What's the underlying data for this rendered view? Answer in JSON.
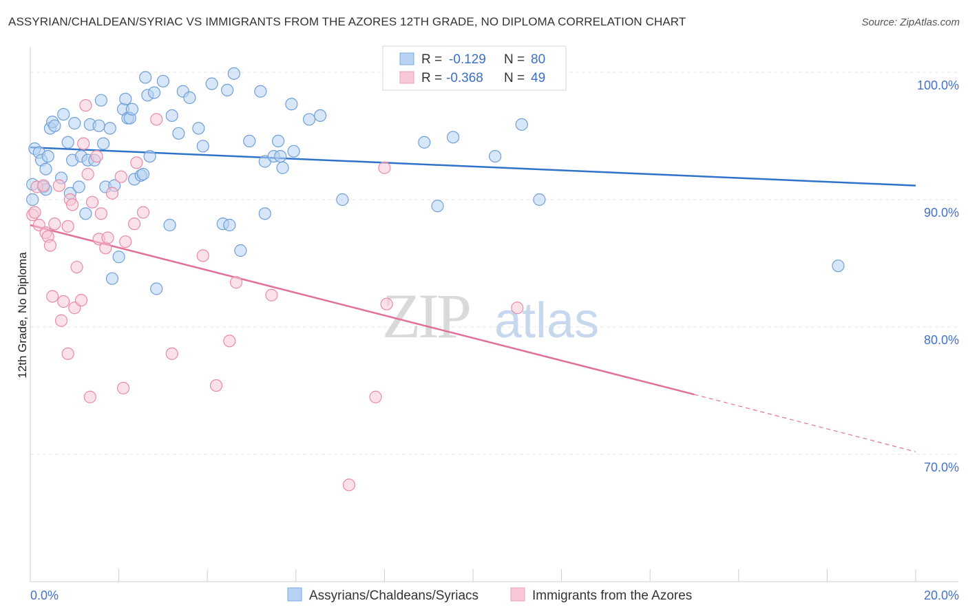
{
  "title": "ASSYRIAN/CHALDEAN/SYRIAC VS IMMIGRANTS FROM THE AZORES 12TH GRADE, NO DIPLOMA CORRELATION CHART",
  "source": "Source: ZipAtlas.com",
  "watermark": {
    "zip": "ZIP",
    "atlas": "atlas"
  },
  "stats_legend": [
    {
      "r_label": "R =",
      "r_value": "-0.129",
      "n_label": "N =",
      "n_value": "80",
      "color": "#a8c8f0"
    },
    {
      "r_label": "R =",
      "r_value": "-0.368",
      "n_label": "N =",
      "n_value": "49",
      "color": "#f5b8cb"
    }
  ],
  "chart_data": {
    "type": "scatter",
    "title": "ASSYRIAN/CHALDEAN/SYRIAC VS IMMIGRANTS FROM THE AZORES 12TH GRADE, NO DIPLOMA CORRELATION CHART",
    "xlabel": "",
    "ylabel": "12th Grade, No Diploma",
    "xlim": [
      0,
      20
    ],
    "ylim": [
      60,
      102
    ],
    "x_tick_labels": [
      "0.0%",
      "20.0%"
    ],
    "y_ticks": [
      70,
      80,
      90,
      100
    ],
    "y_tick_labels": [
      "70.0%",
      "80.0%",
      "90.0%",
      "100.0%"
    ],
    "grid": true,
    "legend_position": "bottom",
    "series": [
      {
        "name": "Assyrians/Chaldeans/Syriacs",
        "color": "#6f9fd8",
        "fill": "#b7d2f2",
        "line_color": "#2e72c9",
        "trend": {
          "x0": 0,
          "y0": 94.1,
          "x1": 20,
          "y1": 91.1
        },
        "points": [
          [
            0.1,
            94.0
          ],
          [
            0.2,
            93.7
          ],
          [
            0.25,
            93.1
          ],
          [
            0.3,
            91.0
          ],
          [
            0.35,
            92.4
          ],
          [
            0.35,
            90.8
          ],
          [
            0.4,
            93.4
          ],
          [
            0.45,
            95.6
          ],
          [
            0.5,
            96.1
          ],
          [
            0.55,
            95.8
          ],
          [
            0.7,
            91.7
          ],
          [
            0.75,
            96.7
          ],
          [
            0.85,
            94.5
          ],
          [
            0.9,
            90.5
          ],
          [
            0.95,
            93.1
          ],
          [
            1.0,
            96.0
          ],
          [
            1.1,
            91.0
          ],
          [
            1.15,
            93.4
          ],
          [
            1.25,
            88.9
          ],
          [
            1.3,
            93.1
          ],
          [
            1.35,
            95.9
          ],
          [
            1.45,
            93.1
          ],
          [
            1.55,
            95.8
          ],
          [
            1.6,
            97.8
          ],
          [
            1.65,
            94.4
          ],
          [
            1.7,
            91.0
          ],
          [
            1.8,
            95.6
          ],
          [
            1.85,
            83.8
          ],
          [
            1.9,
            91.1
          ],
          [
            2.0,
            85.5
          ],
          [
            2.1,
            97.1
          ],
          [
            2.15,
            97.9
          ],
          [
            2.2,
            96.4
          ],
          [
            2.25,
            96.4
          ],
          [
            2.3,
            97.1
          ],
          [
            2.35,
            91.6
          ],
          [
            2.5,
            91.9
          ],
          [
            2.55,
            92.0
          ],
          [
            2.6,
            99.6
          ],
          [
            2.65,
            98.2
          ],
          [
            2.7,
            93.4
          ],
          [
            2.8,
            98.4
          ],
          [
            2.85,
            83.0
          ],
          [
            3.0,
            99.3
          ],
          [
            3.2,
            96.6
          ],
          [
            3.15,
            88.0
          ],
          [
            3.35,
            95.2
          ],
          [
            3.45,
            98.5
          ],
          [
            3.6,
            98.0
          ],
          [
            3.8,
            95.6
          ],
          [
            3.9,
            94.2
          ],
          [
            4.1,
            99.1
          ],
          [
            4.35,
            88.1
          ],
          [
            4.45,
            98.6
          ],
          [
            4.5,
            88.0
          ],
          [
            4.6,
            99.9
          ],
          [
            4.75,
            86.0
          ],
          [
            4.95,
            94.6
          ],
          [
            5.2,
            98.5
          ],
          [
            5.3,
            88.9
          ],
          [
            5.3,
            93.0
          ],
          [
            5.5,
            93.4
          ],
          [
            5.6,
            94.6
          ],
          [
            5.65,
            93.4
          ],
          [
            5.7,
            92.5
          ],
          [
            5.9,
            97.5
          ],
          [
            5.95,
            93.8
          ],
          [
            6.3,
            96.3
          ],
          [
            6.55,
            96.6
          ],
          [
            7.05,
            90.0
          ],
          [
            8.9,
            94.5
          ],
          [
            9.2,
            89.5
          ],
          [
            9.55,
            94.9
          ],
          [
            10.5,
            93.4
          ],
          [
            11.1,
            95.9
          ],
          [
            11.5,
            90.0
          ],
          [
            18.25,
            84.8
          ],
          [
            0.05,
            91.2
          ],
          [
            0.05,
            90.0
          ]
        ]
      },
      {
        "name": "Immigrants from the Azores",
        "color": "#e88aa8",
        "fill": "#f8c8d6",
        "line_color": "#e0709b",
        "trend": {
          "x0": 0,
          "y0": 88.0,
          "x1": 15.0,
          "y1": 74.7
        },
        "trend_dashed": {
          "x0": 15.0,
          "y0": 74.7,
          "x1": 20,
          "y1": 70.2
        },
        "points": [
          [
            0.05,
            88.8
          ],
          [
            0.1,
            89.0
          ],
          [
            0.15,
            91.0
          ],
          [
            0.2,
            88.0
          ],
          [
            0.3,
            91.1
          ],
          [
            0.35,
            87.4
          ],
          [
            0.4,
            87.1
          ],
          [
            0.45,
            86.4
          ],
          [
            0.5,
            82.4
          ],
          [
            0.55,
            88.1
          ],
          [
            0.65,
            91.1
          ],
          [
            0.7,
            80.5
          ],
          [
            0.75,
            82.0
          ],
          [
            0.85,
            77.9
          ],
          [
            0.85,
            87.9
          ],
          [
            0.9,
            90.0
          ],
          [
            0.95,
            89.6
          ],
          [
            1.0,
            81.5
          ],
          [
            1.05,
            84.7
          ],
          [
            1.15,
            82.1
          ],
          [
            1.2,
            94.4
          ],
          [
            1.25,
            97.4
          ],
          [
            1.3,
            92.0
          ],
          [
            1.4,
            89.8
          ],
          [
            1.5,
            93.4
          ],
          [
            1.55,
            86.9
          ],
          [
            1.6,
            88.9
          ],
          [
            1.7,
            86.2
          ],
          [
            1.75,
            87.0
          ],
          [
            1.85,
            90.5
          ],
          [
            2.05,
            91.8
          ],
          [
            2.1,
            75.2
          ],
          [
            2.15,
            86.7
          ],
          [
            2.35,
            88.1
          ],
          [
            2.4,
            92.9
          ],
          [
            2.55,
            89.0
          ],
          [
            2.85,
            96.3
          ],
          [
            3.2,
            77.9
          ],
          [
            3.9,
            85.6
          ],
          [
            4.2,
            75.4
          ],
          [
            4.5,
            78.9
          ],
          [
            4.65,
            83.5
          ],
          [
            5.45,
            82.5
          ],
          [
            8.0,
            92.5
          ],
          [
            8.05,
            81.8
          ],
          [
            11.0,
            81.5
          ],
          [
            1.35,
            74.5
          ],
          [
            7.2,
            67.6
          ],
          [
            7.8,
            74.5
          ]
        ]
      }
    ]
  }
}
